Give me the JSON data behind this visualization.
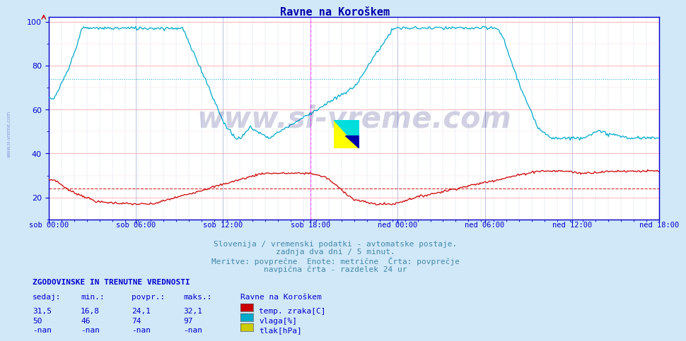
{
  "title": "Ravne na Koroškem",
  "bg_color": "#d0e8f8",
  "plot_bg_color": "#ffffff",
  "axis_color": "#0000cc",
  "title_color": "#0000aa",
  "subtitle_lines": [
    "Slovenija / vremenski podatki - avtomatske postaje.",
    "zadnja dva dni / 5 minut.",
    "Meritve: povprečne  Enote: metrične  Črta: povprečje",
    "navpična črta - razdelek 24 ur"
  ],
  "subtitle_color": "#4488aa",
  "ylim": [
    10,
    102
  ],
  "yticks": [
    20,
    40,
    60,
    80,
    100
  ],
  "watermark": "www.si-vreme.com",
  "temp_color": "#cc0000",
  "vlaga_color": "#00aacc",
  "vline_color": "#ff44ff",
  "hline_temp_avg": 24.1,
  "hline_vlaga_avg": 74.0,
  "table_header": "ZGODOVINSKE IN TRENUTNE VREDNOSTI",
  "table_cols": [
    "sedaj:",
    "min.:",
    "povpr.:",
    "maks.:"
  ],
  "table_data": [
    [
      "31,5",
      "16,8",
      "24,1",
      "32,1",
      "temp. zraka[C]",
      "#cc0000"
    ],
    [
      "50",
      "46",
      "74",
      "97",
      "vlaga[%]",
      "#00aacc"
    ],
    [
      "-nan",
      "-nan",
      "-nan",
      "-nan",
      "tlak[hPa]",
      "#cccc00"
    ]
  ],
  "xtick_labels": [
    "sob 00:00",
    "sob 06:00",
    "sob 12:00",
    "sob 18:00",
    "ned 00:00",
    "ned 06:00",
    "ned 12:00",
    "ned 18:00"
  ],
  "n_points": 576,
  "sidebar_text": "www.si-vreme.com"
}
